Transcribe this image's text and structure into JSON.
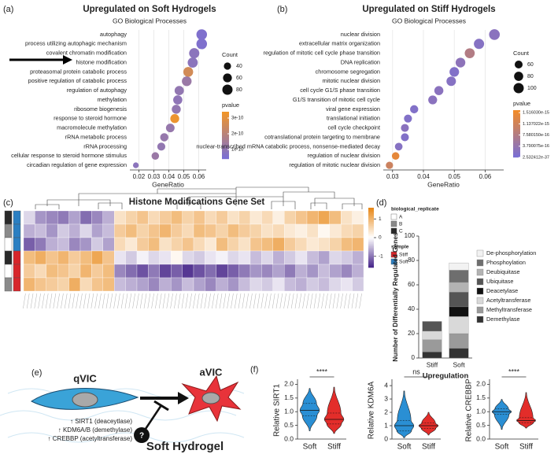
{
  "chart_data": [
    {
      "type": "dot",
      "label": "(a)",
      "title": "Upregulated on Soft Hydrogels",
      "subtitle": "GO Biological Processes",
      "xlabel": "GeneRatio",
      "categories": [
        "autophagy",
        "process utilizing autophagic mechanism",
        "covalent chromatin modification",
        "histone modification",
        "proteasomal protein catabolic process",
        "positive regulation of catabolic process",
        "regulation of autophagy",
        "methylation",
        "ribosome biogenesis",
        "response to steroid hormone",
        "macromolecule methylation",
        "rRNA metabolic process",
        "rRNA processing",
        "cellular response to steroid hormone stimulus",
        "circadian regulation of gene expression"
      ],
      "gene_ratio": [
        0.062,
        0.062,
        0.057,
        0.056,
        0.053,
        0.052,
        0.047,
        0.046,
        0.045,
        0.044,
        0.041,
        0.037,
        0.035,
        0.031,
        0.018
      ],
      "count": [
        86,
        86,
        80,
        78,
        74,
        72,
        66,
        64,
        62,
        61,
        57,
        52,
        49,
        43,
        25
      ],
      "pvalue": [
        5e-11,
        5e-11,
        8e-11,
        8e-11,
        2.6e-10,
        1.2e-10,
        1e-10,
        9e-11,
        1e-10,
        3.3e-10,
        1.1e-10,
        1.1e-10,
        1e-10,
        1.2e-10,
        8e-11
      ],
      "xlim": [
        0.014,
        0.065
      ],
      "xticks": [
        0.02,
        0.03,
        0.04,
        0.05,
        0.06
      ],
      "size_title": "Count",
      "size_ticks": [
        40,
        60,
        80
      ],
      "color_title": "pvalue",
      "color_lim": [
        4e-11,
        3.4e-10
      ],
      "color_ticks": [
        {
          "value": 3e-10,
          "label": "3e-10"
        },
        {
          "value": 2e-10,
          "label": "2e-10"
        },
        {
          "value": 1e-10,
          "label": "1e-10"
        }
      ],
      "colors": [
        "#7b6fd3",
        "#f0952a"
      ]
    },
    {
      "type": "dot",
      "label": "(b)",
      "title": "Upregulated on Stiff Hydrogels",
      "subtitle": "GO Biological Processes",
      "xlabel": "GeneRatio",
      "categories": [
        "nuclear division",
        "extracellular matrix organization",
        "regulation of mitotic cell cycle phase transition",
        "DNA replication",
        "chromosome segregation",
        "mitotic nuclear division",
        "cell cycle G1/S phase transition",
        "G1/S transition of mitotic cell cycle",
        "viral gene expression",
        "translational initiation",
        "cell cycle checkpoint",
        "cotranslational protein targeting to membrane",
        "nuclear-transcribed mRNA catabolic process, nonsense-mediated decay",
        "regulation of nuclear division",
        "regulation of mitotic nuclear division"
      ],
      "gene_ratio": [
        0.063,
        0.058,
        0.055,
        0.052,
        0.05,
        0.049,
        0.045,
        0.043,
        0.037,
        0.035,
        0.034,
        0.034,
        0.032,
        0.031,
        0.029
      ],
      "count": [
        110,
        100,
        95,
        90,
        88,
        86,
        78,
        75,
        64,
        61,
        60,
        60,
        56,
        54,
        50
      ],
      "pvalue": [
        2e-16,
        1.5e-16,
        7.5e-16,
        2.5e-16,
        1e-16,
        1.5e-16,
        2e-16,
        2e-16,
        1e-16,
        1e-16,
        2e-16,
        1e-16,
        1.5e-16,
        1.45e-15,
        1.1e-15
      ],
      "xlim": [
        0.027,
        0.066
      ],
      "xticks": [
        0.03,
        0.04,
        0.05,
        0.06
      ],
      "size_title": "Count",
      "size_ticks": [
        60,
        80,
        100
      ],
      "color_title": "pvalue",
      "color_lim": [
        2.532412e-37,
        1.6e-15
      ],
      "color_ticks": [
        {
          "value": 1.51603e-15,
          "label": "1.516030e-15"
        },
        {
          "value": 1.137022e-15,
          "label": "1.137022e-15"
        },
        {
          "value": 7.58015e-16,
          "label": "7.580150e-16"
        },
        {
          "value": 3.790075e-16,
          "label": "3.790075e-16"
        },
        {
          "value": 2.532412e-37,
          "label": "2.532412e-37"
        }
      ],
      "colors": [
        "#7b6fd3",
        "#f08a2a"
      ]
    },
    {
      "type": "heatmap",
      "label": "(c)",
      "title": "Histone Modifications Gene Set",
      "values": [
        [
          -0.3,
          -0.8,
          -0.9,
          -1.0,
          -0.7,
          -1.1,
          -0.9,
          -0.6,
          0.4,
          0.6,
          0.8,
          0.5,
          0.7,
          0.9,
          0.6,
          0.8,
          0.5,
          0.7,
          0.4,
          0.6,
          0.3,
          0.5,
          0.2,
          0.6,
          0.8,
          1.0,
          1.2,
          0.9,
          0.4,
          0.2
        ],
        [
          -0.6,
          -0.5,
          -0.8,
          -0.4,
          -0.6,
          -0.3,
          -0.7,
          -0.5,
          0.7,
          0.9,
          0.6,
          0.8,
          1.0,
          0.7,
          0.5,
          0.9,
          0.8,
          0.6,
          0.9,
          0.7,
          0.6,
          0.4,
          0.5,
          0.3,
          0.2,
          0.4,
          0.1,
          0.3,
          0.5,
          0.6
        ],
        [
          -1.2,
          -1.0,
          -0.6,
          -0.5,
          -0.9,
          -0.8,
          -0.4,
          -0.7,
          0.5,
          0.3,
          0.7,
          0.9,
          0.4,
          0.6,
          0.8,
          0.5,
          0.3,
          0.9,
          0.6,
          0.4,
          0.8,
          0.9,
          1.1,
          0.7,
          0.5,
          0.3,
          0.4,
          0.6,
          0.9,
          1.0
        ],
        [
          0.9,
          1.1,
          0.8,
          1.0,
          0.7,
          0.9,
          1.2,
          0.8,
          -0.2,
          -0.4,
          -0.1,
          -0.3,
          -0.2,
          0.1,
          -0.3,
          -0.4,
          -0.2,
          -0.1,
          -0.3,
          -0.2,
          -0.5,
          -0.3,
          -0.6,
          -0.4,
          -0.2,
          -0.5,
          -0.7,
          -0.3,
          -0.4,
          -0.6
        ],
        [
          0.7,
          0.5,
          0.9,
          0.8,
          0.6,
          1.0,
          0.7,
          0.9,
          -0.9,
          -1.1,
          -1.3,
          -1.0,
          -1.4,
          -1.2,
          -1.5,
          -1.3,
          -1.1,
          -1.4,
          -1.2,
          -1.0,
          -0.8,
          -0.9,
          -0.7,
          -1.0,
          -0.6,
          -0.8,
          -0.5,
          -0.7,
          -0.9,
          -0.6
        ],
        [
          1.0,
          0.8,
          0.7,
          0.6,
          1.1,
          0.5,
          0.8,
          0.9,
          -0.5,
          -0.6,
          -0.7,
          -0.9,
          -0.6,
          -0.8,
          -0.5,
          -0.7,
          -0.9,
          -0.6,
          -0.8,
          -0.5,
          -0.3,
          -0.4,
          -0.2,
          -0.5,
          -0.6,
          -0.4,
          -0.5,
          -0.3,
          -0.2,
          -0.4
        ]
      ],
      "zlim": [
        -1.6,
        1.6
      ],
      "zticks": [
        1,
        0,
        -1
      ],
      "colors": [
        "#4b2a8c",
        "#ffffff",
        "#e8891a"
      ],
      "replicate_title": "biological_replicate",
      "replicates": [
        "A",
        "B",
        "C"
      ],
      "replicate_colors": [
        "#ffffff",
        "#8a8a8a",
        "#2a2a2a"
      ],
      "sample_title": "sample",
      "samples": [
        "Stiff",
        "Soft"
      ],
      "sample_colors": [
        "#d7262b",
        "#2b7fc2"
      ],
      "row_replicates": [
        "C",
        "B",
        "A",
        "C",
        "A",
        "B"
      ],
      "row_samples": [
        "Soft",
        "Soft",
        "Soft",
        "Stiff",
        "Stiff",
        "Stiff"
      ]
    },
    {
      "type": "stacked_bar",
      "label": "(d)",
      "ylabel": "Number of Differentially Regulated Genes",
      "xlabel": "Upregulation",
      "categories": [
        "Stiff",
        "Soft"
      ],
      "series": [
        {
          "name": "Demethylase",
          "color": "#333333",
          "values": [
            5,
            8
          ]
        },
        {
          "name": "Methyltransferase",
          "color": "#9a9a9a",
          "values": [
            10,
            12
          ]
        },
        {
          "name": "Acetyltransferase",
          "color": "#d9d9d9",
          "values": [
            7,
            14
          ]
        },
        {
          "name": "Deacetylase",
          "color": "#111111",
          "values": [
            0,
            8
          ]
        },
        {
          "name": "Ubiquitase",
          "color": "#555555",
          "values": [
            8,
            12
          ]
        },
        {
          "name": "Deubiquitase",
          "color": "#b3b3b3",
          "values": [
            0,
            8
          ]
        },
        {
          "name": "Phosphoylation",
          "color": "#6e6e6e",
          "values": [
            0,
            10
          ]
        },
        {
          "name": "De-phosphorylation",
          "color": "#f2f2f2",
          "values": [
            0,
            6
          ]
        }
      ],
      "ylim": [
        0,
        100
      ],
      "yticks": [
        0,
        20,
        40,
        60,
        80,
        100
      ]
    },
    {
      "type": "violin",
      "label": "(f)",
      "ylabel": "Relative SIRT1",
      "categories": [
        "Soft",
        "Stiff"
      ],
      "colors": [
        "#2a8fd4",
        "#e32d2a"
      ],
      "stats": [
        {
          "min": 0.3,
          "q1": 0.85,
          "median": 1.05,
          "q3": 1.3,
          "max": 1.85
        },
        {
          "min": 0.2,
          "q1": 0.55,
          "median": 0.72,
          "q3": 0.95,
          "max": 1.9
        }
      ],
      "ylim": [
        0,
        2.1
      ],
      "yticks": [
        {
          "value": 0,
          "label": "0.0"
        },
        0.5,
        {
          "value": 1,
          "label": "1.0"
        },
        1.5,
        {
          "value": 2,
          "label": "2.0"
        }
      ],
      "annotation": "****"
    },
    {
      "type": "violin",
      "ylabel": "Relative KDM6A",
      "categories": [
        "Soft",
        "Stiff"
      ],
      "colors": [
        "#2a8fd4",
        "#e32d2a"
      ],
      "stats": [
        {
          "min": 0.1,
          "q1": 0.6,
          "median": 1.0,
          "q3": 1.4,
          "max": 3.6
        },
        {
          "min": 0.3,
          "q1": 0.8,
          "median": 1.0,
          "q3": 1.2,
          "max": 2.0
        }
      ],
      "ylim": [
        0,
        4.3
      ],
      "yticks": [
        0,
        1,
        2,
        3,
        4
      ],
      "annotation": "ns"
    },
    {
      "type": "violin",
      "ylabel": "Relative CREBBP",
      "categories": [
        "Soft",
        "Stiff"
      ],
      "colors": [
        "#2a8fd4",
        "#e32d2a"
      ],
      "stats": [
        {
          "min": 0.35,
          "q1": 0.9,
          "median": 1.0,
          "q3": 1.1,
          "max": 1.45
        },
        {
          "min": 0.4,
          "q1": 0.6,
          "median": 0.68,
          "q3": 0.78,
          "max": 1.7
        }
      ],
      "ylim": [
        0,
        2.1
      ],
      "yticks": [
        {
          "value": 0,
          "label": "0.0"
        },
        0.5,
        {
          "value": 1,
          "label": "1.0"
        },
        1.5,
        {
          "value": 2,
          "label": "2.0"
        }
      ],
      "annotation": "****"
    }
  ],
  "diagram": {
    "label": "(e)",
    "cell_before": "qVIC",
    "cell_after": "aVIC",
    "question": "?",
    "markers": [
      "↑ SIRT1 (deaceytlase)",
      "↑ KDM6A/B (demethylase)",
      "↑ CREBBP (acetyltransferase)"
    ],
    "substrate": "Soft Hydrogel"
  }
}
